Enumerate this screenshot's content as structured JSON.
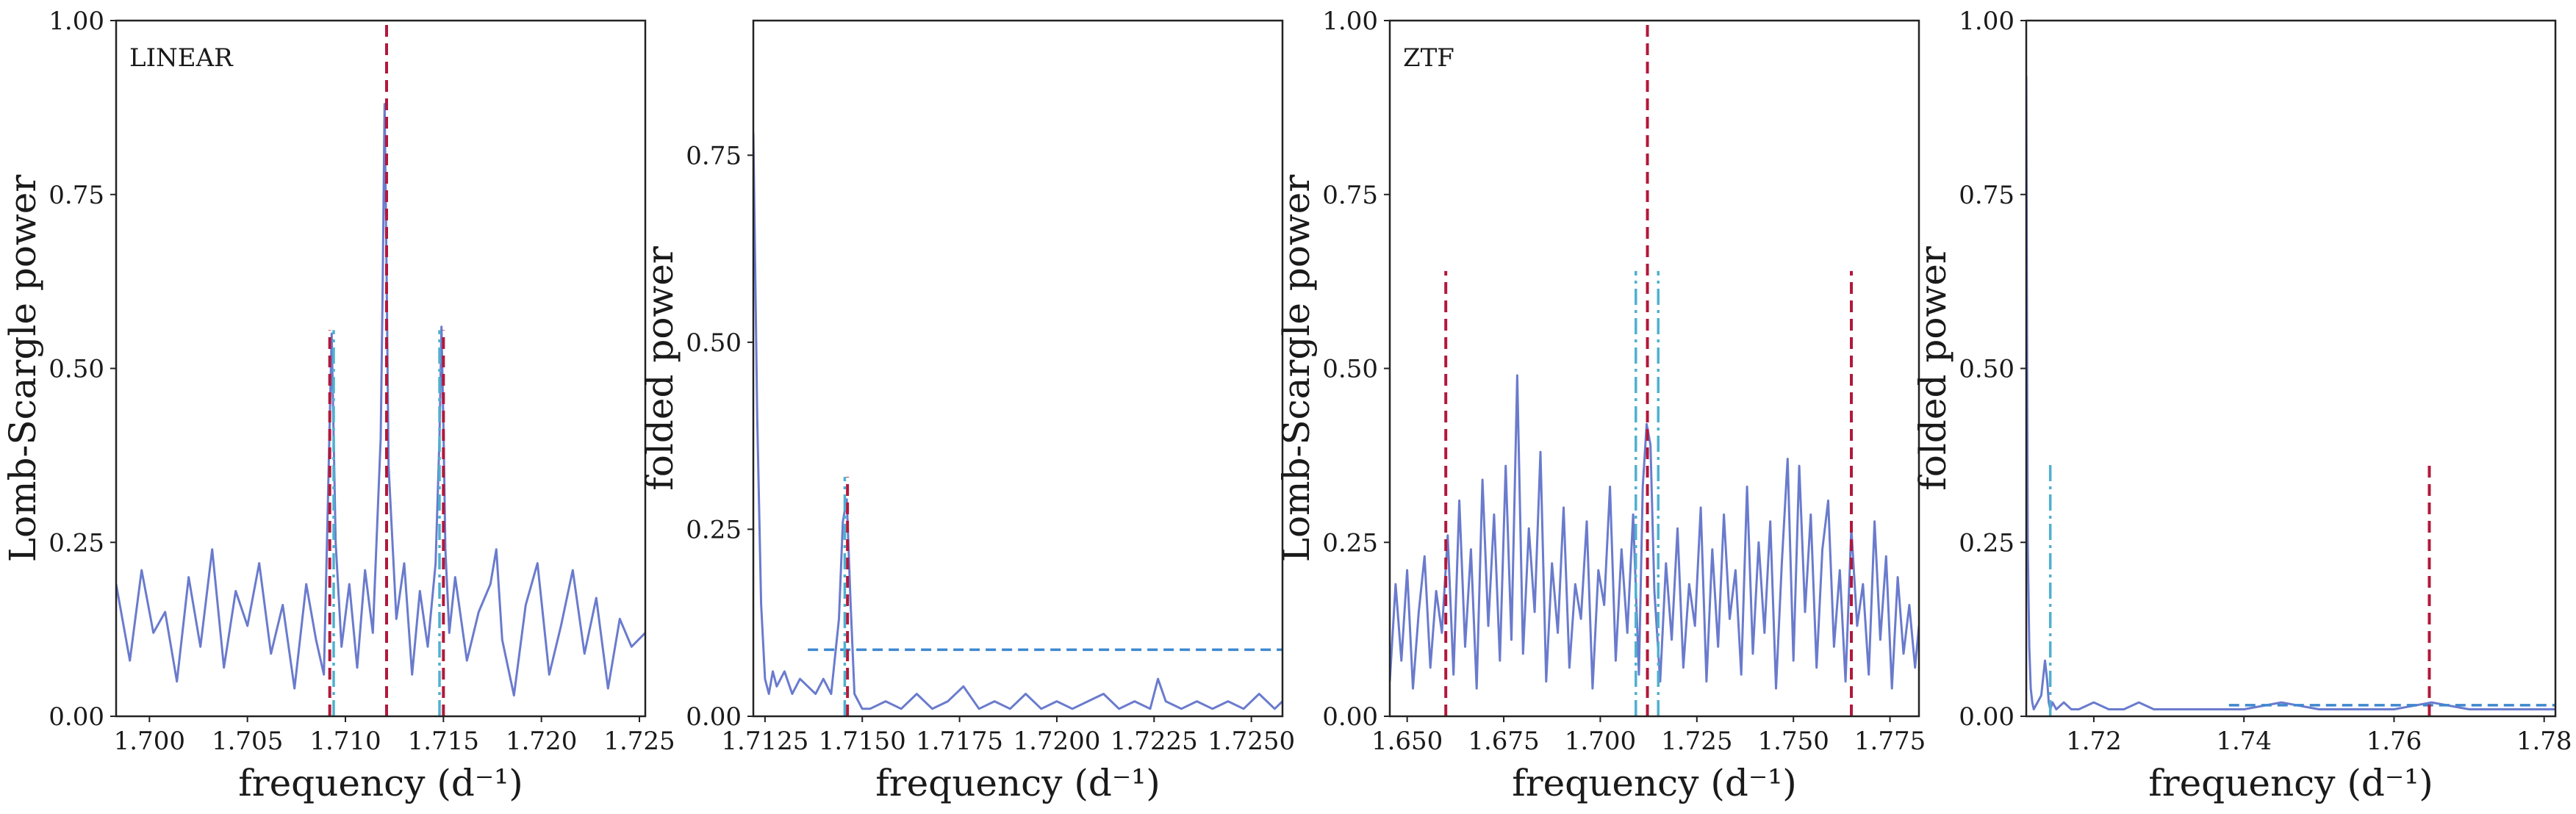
{
  "figure": {
    "panels": 4,
    "colors": {
      "periodogram": "#6a7bcd",
      "peak_marker": "#b2183b",
      "alias_marker": "#4fb0cf",
      "threshold": "#3f88cf",
      "axes": "#222222"
    }
  },
  "chart_data": [
    {
      "type": "line",
      "annotation": "LINEAR",
      "xlabel": "frequency (d⁻¹)",
      "ylabel": "Lomb-Scargle power",
      "xlim": [
        1.6983,
        1.7253
      ],
      "ylim": [
        0,
        1
      ],
      "xticks": [
        1.7,
        1.705,
        1.71,
        1.715,
        1.72,
        1.725
      ],
      "xtick_labels": [
        "1.700",
        "1.705",
        "1.710",
        "1.715",
        "1.720",
        "1.725"
      ],
      "yticks": [
        0,
        0.25,
        0.5,
        0.75,
        1.0
      ],
      "ytick_labels": [
        "0.00",
        "0.25",
        "0.50",
        "0.75",
        "1.00"
      ],
      "series": [
        {
          "x": [
            1.6983,
            1.699,
            1.6996,
            1.7002,
            1.7008,
            1.7014,
            1.702,
            1.7026,
            1.7032,
            1.7038,
            1.7044,
            1.705,
            1.7056,
            1.7062,
            1.7068,
            1.7074,
            1.708,
            1.7085,
            1.7089,
            1.7091,
            1.7093,
            1.7095,
            1.7098,
            1.7102,
            1.7106,
            1.711,
            1.7114,
            1.7118,
            1.7119,
            1.712,
            1.7121,
            1.7122,
            1.7126,
            1.713,
            1.7134,
            1.7138,
            1.7142,
            1.7146,
            1.7148,
            1.7149,
            1.715,
            1.7151,
            1.7153,
            1.7156,
            1.7162,
            1.7168,
            1.7174,
            1.7177,
            1.718,
            1.7186,
            1.7192,
            1.7198,
            1.7204,
            1.721,
            1.7216,
            1.7222,
            1.7228,
            1.7234,
            1.724,
            1.7246,
            1.7253
          ],
          "y": [
            0.19,
            0.08,
            0.21,
            0.12,
            0.15,
            0.05,
            0.2,
            0.1,
            0.24,
            0.07,
            0.18,
            0.13,
            0.22,
            0.09,
            0.16,
            0.04,
            0.19,
            0.11,
            0.06,
            0.3,
            0.55,
            0.25,
            0.1,
            0.19,
            0.07,
            0.21,
            0.12,
            0.4,
            0.62,
            0.88,
            0.64,
            0.36,
            0.14,
            0.22,
            0.06,
            0.18,
            0.1,
            0.22,
            0.4,
            0.56,
            0.42,
            0.24,
            0.12,
            0.2,
            0.08,
            0.15,
            0.19,
            0.24,
            0.11,
            0.03,
            0.16,
            0.22,
            0.06,
            0.13,
            0.21,
            0.09,
            0.17,
            0.04,
            0.14,
            0.1,
            0.12
          ]
        }
      ],
      "vlines": [
        {
          "x": 1.7121,
          "y_range": [
            0,
            1.0
          ],
          "style": "dashed",
          "role": "peak"
        },
        {
          "x": 1.7092,
          "y_range": [
            0,
            0.555
          ],
          "style": "dashed",
          "role": "alias-left"
        },
        {
          "x": 1.715,
          "y_range": [
            0,
            0.555
          ],
          "style": "dashed",
          "role": "alias-right"
        },
        {
          "x": 1.7094,
          "y_range": [
            0,
            0.555
          ],
          "style": "dashdot",
          "role": "alias-left"
        },
        {
          "x": 1.7148,
          "y_range": [
            0,
            0.555
          ],
          "style": "dashdot",
          "role": "alias-right"
        }
      ],
      "hlines": []
    },
    {
      "type": "line",
      "annotation": "",
      "xlabel": "frequency (d⁻¹)",
      "ylabel": "folded power",
      "xlim": [
        1.7122,
        1.7258
      ],
      "ylim": [
        0,
        0.93
      ],
      "xticks": [
        1.7125,
        1.715,
        1.7175,
        1.72,
        1.7225,
        1.725
      ],
      "xtick_labels": [
        "1.7125",
        "1.7150",
        "1.7175",
        "1.7200",
        "1.7225",
        "1.7250"
      ],
      "yticks": [
        0,
        0.25,
        0.5,
        0.75
      ],
      "ytick_labels": [
        "0.00",
        "0.25",
        "0.50",
        "0.75"
      ],
      "series": [
        {
          "x": [
            1.7122,
            1.7123,
            1.7124,
            1.7125,
            1.7126,
            1.7127,
            1.7128,
            1.713,
            1.7132,
            1.7134,
            1.7136,
            1.7138,
            1.714,
            1.7142,
            1.7144,
            1.7145,
            1.7146,
            1.7147,
            1.7148,
            1.715,
            1.7152,
            1.7156,
            1.716,
            1.7164,
            1.7168,
            1.7172,
            1.7176,
            1.718,
            1.7184,
            1.7188,
            1.7192,
            1.7196,
            1.72,
            1.7204,
            1.7208,
            1.7212,
            1.7216,
            1.722,
            1.7224,
            1.7226,
            1.7228,
            1.7232,
            1.7236,
            1.724,
            1.7244,
            1.7248,
            1.7252,
            1.7256,
            1.7258
          ],
          "y": [
            0.78,
            0.4,
            0.15,
            0.05,
            0.03,
            0.06,
            0.04,
            0.06,
            0.03,
            0.05,
            0.04,
            0.03,
            0.05,
            0.03,
            0.13,
            0.26,
            0.29,
            0.15,
            0.03,
            0.01,
            0.01,
            0.02,
            0.01,
            0.03,
            0.01,
            0.02,
            0.04,
            0.01,
            0.02,
            0.01,
            0.03,
            0.01,
            0.02,
            0.01,
            0.02,
            0.03,
            0.01,
            0.02,
            0.01,
            0.05,
            0.02,
            0.01,
            0.02,
            0.01,
            0.02,
            0.01,
            0.03,
            0.01,
            0.02
          ]
        }
      ],
      "vlines": [
        {
          "x": 1.71462,
          "y_range": [
            0,
            0.32
          ],
          "style": "dashed",
          "role": "peak"
        },
        {
          "x": 1.71455,
          "y_range": [
            0,
            0.32
          ],
          "style": "dashdot",
          "role": "alias"
        }
      ],
      "hlines": [
        {
          "y": 0.089,
          "x_range": [
            1.7136,
            1.7258
          ],
          "style": "dashed",
          "role": "threshold"
        }
      ]
    },
    {
      "type": "line",
      "annotation": "ZTF",
      "xlabel": "frequency (d⁻¹)",
      "ylabel": "Lomb-Scargle power",
      "xlim": [
        1.6455,
        1.7825
      ],
      "ylim": [
        0,
        1
      ],
      "xticks": [
        1.65,
        1.675,
        1.7,
        1.725,
        1.75,
        1.775
      ],
      "xtick_labels": [
        "1.650",
        "1.675",
        "1.700",
        "1.725",
        "1.750",
        "1.775"
      ],
      "yticks": [
        0,
        0.25,
        0.5,
        0.75,
        1.0
      ],
      "ytick_labels": [
        "0.00",
        "0.25",
        "0.50",
        "0.75",
        "1.00"
      ],
      "series": [
        {
          "x": [
            1.6455,
            1.647,
            1.6485,
            1.65,
            1.6515,
            1.653,
            1.6545,
            1.656,
            1.6575,
            1.659,
            1.6605,
            1.662,
            1.6635,
            1.665,
            1.6665,
            1.668,
            1.6695,
            1.671,
            1.6725,
            1.674,
            1.6755,
            1.677,
            1.6785,
            1.68,
            1.6815,
            1.683,
            1.6845,
            1.686,
            1.6875,
            1.689,
            1.6905,
            1.692,
            1.6935,
            1.695,
            1.6965,
            1.698,
            1.6995,
            1.701,
            1.7025,
            1.704,
            1.7055,
            1.707,
            1.7085,
            1.71,
            1.711,
            1.712,
            1.713,
            1.714,
            1.7155,
            1.717,
            1.7185,
            1.72,
            1.7215,
            1.723,
            1.7245,
            1.726,
            1.7275,
            1.729,
            1.7305,
            1.732,
            1.7335,
            1.735,
            1.7365,
            1.738,
            1.7395,
            1.741,
            1.7425,
            1.744,
            1.7455,
            1.747,
            1.7485,
            1.75,
            1.7515,
            1.753,
            1.7545,
            1.756,
            1.7575,
            1.759,
            1.7605,
            1.762,
            1.7635,
            1.765,
            1.7665,
            1.768,
            1.7695,
            1.771,
            1.7725,
            1.774,
            1.7755,
            1.777,
            1.7785,
            1.78,
            1.7815,
            1.7825
          ],
          "y": [
            0.05,
            0.19,
            0.08,
            0.21,
            0.04,
            0.15,
            0.23,
            0.07,
            0.18,
            0.12,
            0.26,
            0.06,
            0.31,
            0.1,
            0.24,
            0.04,
            0.34,
            0.13,
            0.29,
            0.08,
            0.36,
            0.11,
            0.49,
            0.09,
            0.27,
            0.15,
            0.38,
            0.05,
            0.22,
            0.12,
            0.3,
            0.07,
            0.19,
            0.14,
            0.28,
            0.04,
            0.21,
            0.16,
            0.33,
            0.08,
            0.24,
            0.12,
            0.29,
            0.06,
            0.33,
            0.42,
            0.39,
            0.18,
            0.05,
            0.22,
            0.11,
            0.27,
            0.07,
            0.19,
            0.13,
            0.3,
            0.05,
            0.24,
            0.1,
            0.29,
            0.14,
            0.21,
            0.06,
            0.33,
            0.09,
            0.25,
            0.12,
            0.28,
            0.04,
            0.22,
            0.37,
            0.08,
            0.36,
            0.15,
            0.29,
            0.07,
            0.24,
            0.31,
            0.1,
            0.21,
            0.05,
            0.27,
            0.13,
            0.19,
            0.06,
            0.28,
            0.11,
            0.23,
            0.04,
            0.2,
            0.09,
            0.16,
            0.07,
            0.13
          ]
        }
      ],
      "vlines": [
        {
          "x": 1.7122,
          "y_range": [
            0,
            1.0
          ],
          "style": "dashed",
          "role": "peak"
        },
        {
          "x": 1.66,
          "y_range": [
            0,
            0.64
          ],
          "style": "dashed",
          "role": "alias-left"
        },
        {
          "x": 1.765,
          "y_range": [
            0,
            0.64
          ],
          "style": "dashed",
          "role": "alias-right"
        },
        {
          "x": 1.7092,
          "y_range": [
            0,
            0.64
          ],
          "style": "dashdot",
          "role": "alias-left"
        },
        {
          "x": 1.715,
          "y_range": [
            0,
            0.64
          ],
          "style": "dashdot",
          "role": "alias-right"
        }
      ],
      "hlines": []
    },
    {
      "type": "line",
      "annotation": "",
      "xlabel": "frequency (d⁻¹)",
      "ylabel": "folded power",
      "xlim": [
        1.711,
        1.7815
      ],
      "ylim": [
        0,
        1
      ],
      "xticks": [
        1.72,
        1.74,
        1.76,
        1.78
      ],
      "xtick_labels": [
        "1.72",
        "1.74",
        "1.76",
        "1.78"
      ],
      "yticks": [
        0,
        0.25,
        0.5,
        0.75,
        1.0
      ],
      "ytick_labels": [
        "0.00",
        "0.25",
        "0.50",
        "0.75",
        "1.00"
      ],
      "series": [
        {
          "x": [
            1.711,
            1.7111,
            1.7112,
            1.7114,
            1.7116,
            1.7118,
            1.712,
            1.7125,
            1.713,
            1.7135,
            1.7138,
            1.714,
            1.7142,
            1.7145,
            1.715,
            1.716,
            1.717,
            1.718,
            1.72,
            1.722,
            1.724,
            1.726,
            1.728,
            1.73,
            1.735,
            1.74,
            1.745,
            1.75,
            1.755,
            1.76,
            1.765,
            1.77,
            1.775,
            1.78,
            1.7815
          ],
          "y": [
            0.92,
            0.55,
            0.25,
            0.1,
            0.04,
            0.02,
            0.01,
            0.02,
            0.03,
            0.08,
            0.05,
            0.02,
            0.01,
            0.02,
            0.01,
            0.02,
            0.01,
            0.01,
            0.02,
            0.01,
            0.01,
            0.02,
            0.01,
            0.01,
            0.01,
            0.01,
            0.02,
            0.01,
            0.01,
            0.01,
            0.02,
            0.01,
            0.01,
            0.01,
            0.01
          ]
        }
      ],
      "vlines": [
        {
          "x": 1.7647,
          "y_range": [
            0,
            0.365
          ],
          "style": "dashed",
          "role": "peak"
        },
        {
          "x": 1.7142,
          "y_range": [
            0,
            0.365
          ],
          "style": "dashdot",
          "role": "alias"
        }
      ],
      "hlines": [
        {
          "y": 0.016,
          "x_range": [
            1.738,
            1.7815
          ],
          "style": "dashed",
          "role": "threshold"
        }
      ]
    }
  ]
}
